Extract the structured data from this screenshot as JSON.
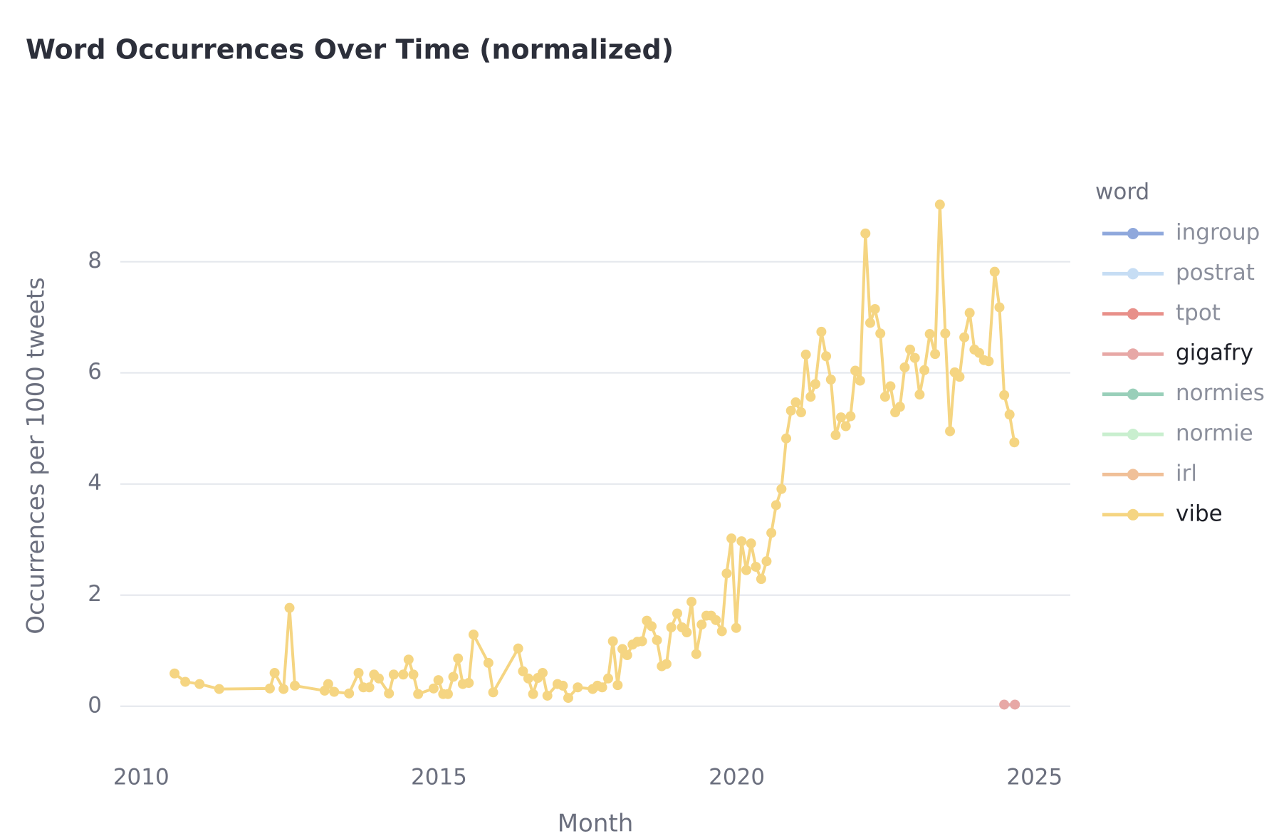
{
  "chart_data": {
    "type": "line",
    "title": "Word Occurrences Over Time (normalized)",
    "x_label": "Month",
    "y_label": "Occurrences per 1000 tweets",
    "legend_title": "word",
    "legend": "right",
    "xlim": [
      2009.65,
      2025.6
    ],
    "xticks": [
      2010,
      2015,
      2020,
      2025
    ],
    "ylim": [
      -0.9,
      9.2
    ],
    "yticks": [
      0,
      2,
      4,
      6,
      8
    ],
    "grid": "y",
    "series": [
      {
        "name": "ingroup",
        "color": "#8fa8dc",
        "highlighted": false,
        "x": [],
        "values": []
      },
      {
        "name": "postrat",
        "color": "#c6ddf4",
        "highlighted": false,
        "x": [],
        "values": []
      },
      {
        "name": "tpot",
        "color": "#e8908a",
        "highlighted": false,
        "x": [],
        "values": []
      },
      {
        "name": "gigafry",
        "color": "#e7a8a6",
        "highlighted": true,
        "x": [
          2024.49,
          2024.67
        ],
        "values": [
          0.03,
          0.03
        ]
      },
      {
        "name": "normies",
        "color": "#99cfb9",
        "highlighted": false,
        "x": [],
        "values": []
      },
      {
        "name": "normie",
        "color": "#c9efcf",
        "highlighted": false,
        "x": [],
        "values": []
      },
      {
        "name": "irl",
        "color": "#f0c098",
        "highlighted": false,
        "x": [],
        "values": []
      },
      {
        "name": "vibe",
        "color": "#f5d582",
        "highlighted": true,
        "x": [
          2010.56,
          2010.74,
          2010.98,
          2011.31,
          2012.16,
          2012.24,
          2012.39,
          2012.49,
          2012.58,
          2013.08,
          2013.14,
          2013.24,
          2013.49,
          2013.65,
          2013.73,
          2013.83,
          2013.91,
          2013.99,
          2014.16,
          2014.24,
          2014.4,
          2014.49,
          2014.57,
          2014.65,
          2014.91,
          2014.99,
          2015.07,
          2015.15,
          2015.24,
          2015.32,
          2015.4,
          2015.5,
          2015.58,
          2015.83,
          2015.91,
          2016.33,
          2016.41,
          2016.5,
          2016.58,
          2016.66,
          2016.74,
          2016.82,
          2016.99,
          2017.08,
          2017.17,
          2017.33,
          2017.58,
          2017.66,
          2017.74,
          2017.84,
          2017.92,
          2018.0,
          2018.08,
          2018.16,
          2018.25,
          2018.33,
          2018.41,
          2018.49,
          2018.57,
          2018.66,
          2018.74,
          2018.82,
          2018.9,
          2019.0,
          2019.08,
          2019.16,
          2019.24,
          2019.32,
          2019.41,
          2019.49,
          2019.57,
          2019.65,
          2019.75,
          2019.83,
          2019.91,
          2019.99,
          2020.08,
          2020.16,
          2020.24,
          2020.32,
          2020.41,
          2020.5,
          2020.58,
          2020.66,
          2020.75,
          2020.83,
          2020.91,
          2020.99,
          2021.08,
          2021.16,
          2021.24,
          2021.32,
          2021.42,
          2021.5,
          2021.58,
          2021.66,
          2021.75,
          2021.83,
          2021.91,
          2021.99,
          2022.07,
          2022.16,
          2022.24,
          2022.32,
          2022.41,
          2022.49,
          2022.58,
          2022.66,
          2022.74,
          2022.82,
          2022.91,
          2022.99,
          2023.07,
          2023.15,
          2023.24,
          2023.33,
          2023.41,
          2023.5,
          2023.58,
          2023.66,
          2023.74,
          2023.82,
          2023.91,
          2023.99,
          2024.07,
          2024.15,
          2024.23,
          2024.33,
          2024.41,
          2024.49,
          2024.58,
          2024.66
        ],
        "values": [
          0.59,
          0.44,
          0.4,
          0.31,
          0.32,
          0.6,
          0.31,
          1.77,
          0.37,
          0.28,
          0.4,
          0.26,
          0.23,
          0.6,
          0.34,
          0.34,
          0.57,
          0.5,
          0.23,
          0.57,
          0.57,
          0.84,
          0.57,
          0.22,
          0.32,
          0.47,
          0.22,
          0.22,
          0.53,
          0.86,
          0.4,
          0.42,
          1.29,
          0.78,
          0.25,
          1.04,
          0.63,
          0.5,
          0.22,
          0.51,
          0.6,
          0.19,
          0.4,
          0.37,
          0.15,
          0.34,
          0.31,
          0.37,
          0.34,
          0.5,
          1.17,
          0.38,
          1.03,
          0.92,
          1.11,
          1.16,
          1.17,
          1.54,
          1.44,
          1.19,
          0.72,
          0.76,
          1.42,
          1.67,
          1.42,
          1.33,
          1.88,
          0.94,
          1.47,
          1.63,
          1.63,
          1.55,
          1.35,
          2.39,
          3.02,
          1.41,
          2.97,
          2.45,
          2.93,
          2.51,
          2.29,
          2.61,
          3.12,
          3.62,
          3.91,
          4.82,
          5.32,
          5.47,
          5.29,
          6.33,
          5.57,
          5.8,
          6.74,
          6.3,
          5.88,
          4.88,
          5.2,
          5.04,
          5.22,
          6.04,
          5.86,
          8.51,
          6.9,
          7.15,
          6.71,
          5.57,
          5.76,
          5.29,
          5.39,
          6.1,
          6.42,
          6.27,
          5.61,
          6.05,
          6.7,
          6.34,
          9.03,
          6.71,
          4.95,
          6.01,
          5.93,
          6.64,
          7.08,
          6.42,
          6.36,
          6.23,
          6.21,
          7.82,
          7.18,
          5.6,
          5.25,
          4.75
        ]
      }
    ]
  }
}
